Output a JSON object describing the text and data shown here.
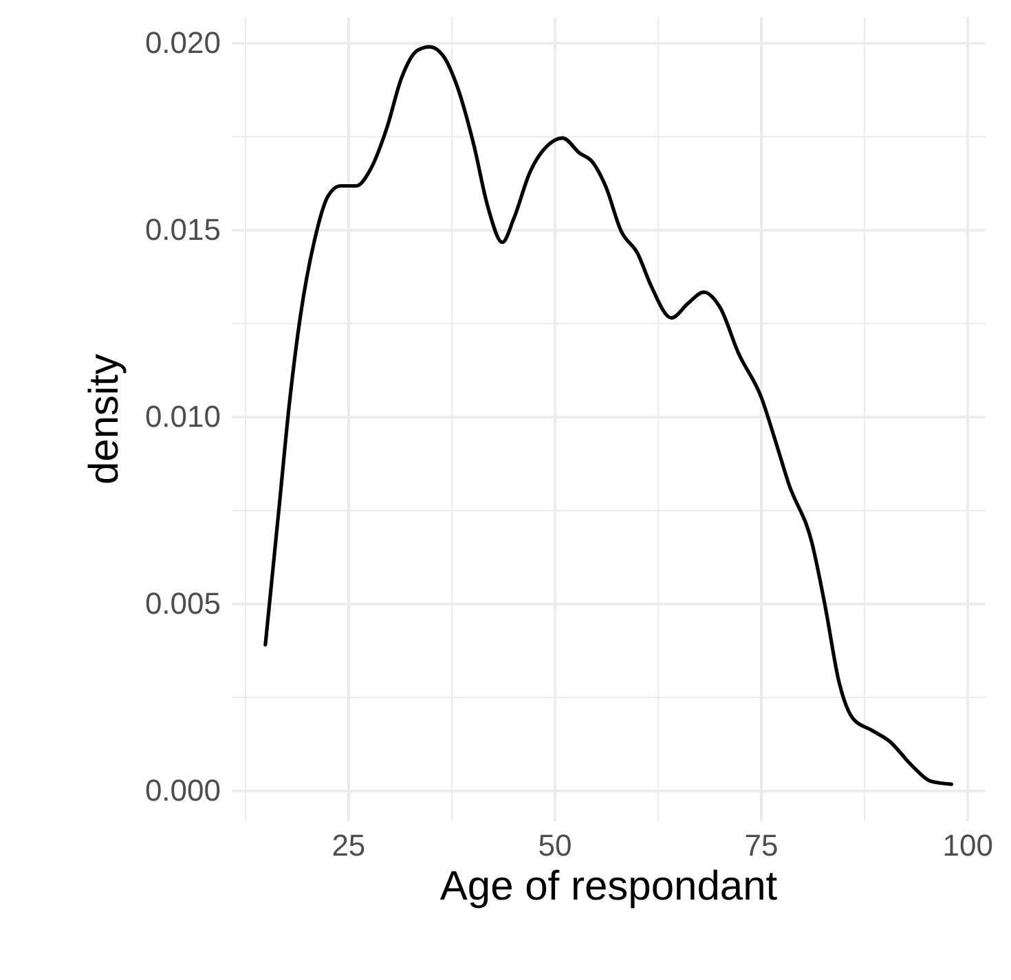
{
  "chart_data": {
    "type": "line",
    "xlabel": "Age of respondant",
    "ylabel": "density",
    "x": [
      15,
      16.7,
      17.9,
      19.2,
      21.0,
      22.6,
      24.1,
      26.0,
      27.8,
      29.7,
      31.5,
      33.4,
      34.9,
      36.5,
      38.3,
      40.2,
      42.0,
      43.7,
      45.1,
      47.0,
      49.4,
      51.0,
      53.1,
      54.5,
      56.2,
      58.1,
      60.1,
      61.7,
      64.2,
      66.2,
      68.1,
      70.1,
      72.3,
      75.1,
      76.7,
      78.4,
      81.2,
      82.8,
      84.5,
      86.2,
      88.4,
      90.6,
      93.4,
      95.6,
      98.1
    ],
    "series": [
      {
        "color": "#000000",
        "values": [
          0.0039,
          0.00765,
          0.01033,
          0.01262,
          0.01476,
          0.0159,
          0.01617,
          0.01617,
          0.01664,
          0.01771,
          0.01906,
          0.01979,
          0.01989,
          0.01966,
          0.01879,
          0.01731,
          0.01557,
          0.01466,
          0.0153,
          0.01651,
          0.01729,
          0.01745,
          0.01704,
          0.01684,
          0.01617,
          0.01496,
          0.01436,
          0.01351,
          0.01264,
          0.01303,
          0.01333,
          0.01291,
          0.0117,
          0.0105,
          0.00941,
          0.0082,
          0.00663,
          0.00494,
          0.00289,
          0.00192,
          0.00162,
          0.00132,
          0.00065,
          0.00025,
          0.00017
        ]
      }
    ],
    "xlim": [
      10.85,
      102.15
    ],
    "ylim": [
      -0.0008,
      0.0207
    ],
    "xticks": [
      {
        "value": 12.5,
        "label": null
      },
      25,
      {
        "value": 37.5,
        "label": null
      },
      50,
      {
        "value": 62.5,
        "label": null
      },
      75,
      {
        "value": 87.5,
        "label": null
      },
      100
    ],
    "yticks": [
      {
        "value": 0,
        "label": "0.000"
      },
      {
        "value": 0.0025,
        "label": null
      },
      {
        "value": 0.005,
        "label": "0.005"
      },
      {
        "value": 0.0075,
        "label": null
      },
      {
        "value": 0.01,
        "label": "0.010"
      },
      {
        "value": 0.0125,
        "label": null
      },
      {
        "value": 0.015,
        "label": "0.015"
      },
      {
        "value": 0.0175,
        "label": null
      },
      {
        "value": 0.02,
        "label": "0.020"
      }
    ],
    "grid": true,
    "line_style": "solid",
    "marker": "none"
  }
}
